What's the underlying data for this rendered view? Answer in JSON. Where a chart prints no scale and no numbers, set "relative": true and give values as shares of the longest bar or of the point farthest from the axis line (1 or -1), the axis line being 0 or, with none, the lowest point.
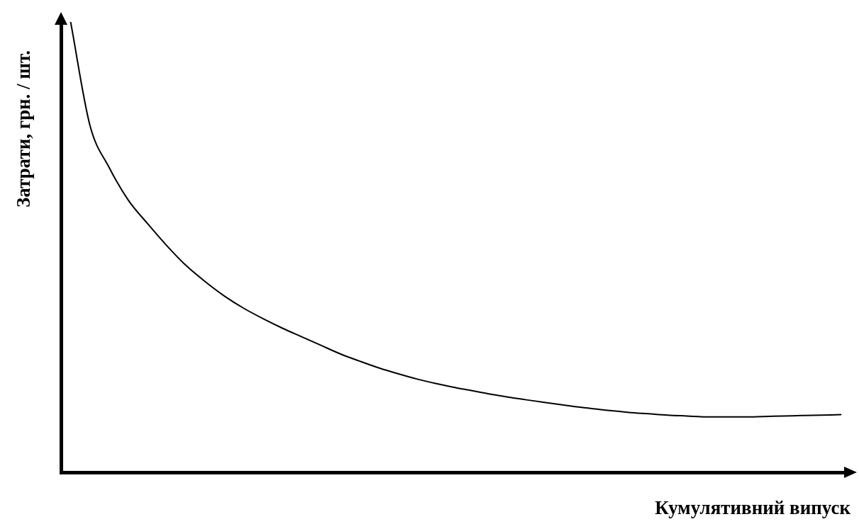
{
  "chart_data": {
    "type": "line",
    "relative": true,
    "xlabel": "Кумулятивний випуск",
    "ylabel": "Затрати, грн. / шт.",
    "categories": [
      null,
      null,
      null,
      null,
      null,
      null,
      null,
      null,
      null,
      null,
      null,
      null,
      null,
      null,
      null,
      null,
      null,
      null,
      null,
      null,
      null,
      null,
      null,
      null,
      null,
      null,
      null,
      null,
      null,
      null,
      null,
      null,
      null,
      null,
      null,
      null,
      null,
      null,
      null,
      null,
      null
    ],
    "series": [
      {
        "color": "#000000",
        "values": [
          1.0,
          0.771,
          0.677,
          0.604,
          0.552,
          0.503,
          0.459,
          0.423,
          0.391,
          0.364,
          0.341,
          0.32,
          0.301,
          0.282,
          0.263,
          0.247,
          0.232,
          0.219,
          0.207,
          0.197,
          0.188,
          0.18,
          0.172,
          0.165,
          0.159,
          0.153,
          0.147,
          0.142,
          0.137,
          0.133,
          0.13,
          0.127,
          0.125,
          0.123,
          0.123,
          0.123,
          0.124,
          0.125,
          0.126,
          0.127,
          0.128
        ]
      }
    ],
    "legend": false,
    "marker": "none",
    "line_style": "solid"
  }
}
